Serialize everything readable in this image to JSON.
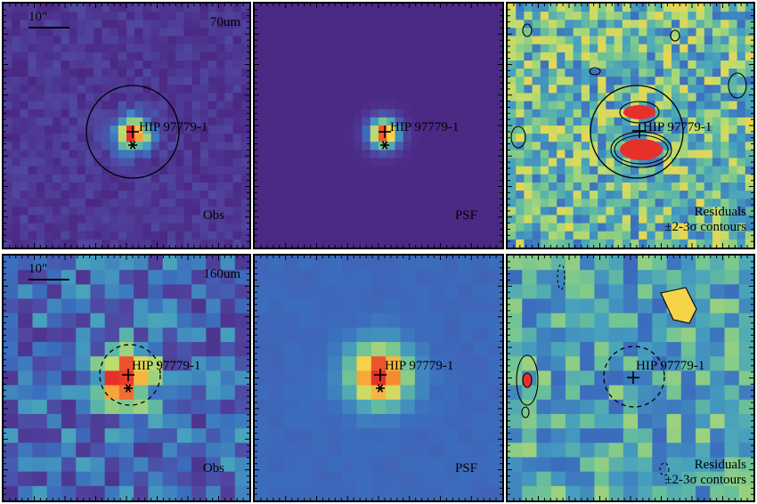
{
  "scale_label": "10\"",
  "source_name": "HIP 97779-1",
  "rows": [
    {
      "band": "70um",
      "panels": {
        "obs": {
          "label": "Obs"
        },
        "psf": {
          "label": "PSF"
        },
        "res": {
          "label_line1": "Residuals",
          "label_line2": "±2-3σ contours"
        }
      }
    },
    {
      "band": "160um",
      "panels": {
        "obs": {
          "label": "Obs"
        },
        "psf": {
          "label": "PSF"
        },
        "res": {
          "label_line1": "Residuals",
          "label_line2": "±2-3σ contours"
        }
      }
    }
  ],
  "colors": {
    "background_70_obs": "#5b3a8c",
    "background_70_psf": "#4a2d8a",
    "background_160": "#3b72b8",
    "peak": "#e8302a",
    "ring_yellow": "#f6d44a",
    "green": "#7ec87a",
    "contour": "#000000"
  }
}
